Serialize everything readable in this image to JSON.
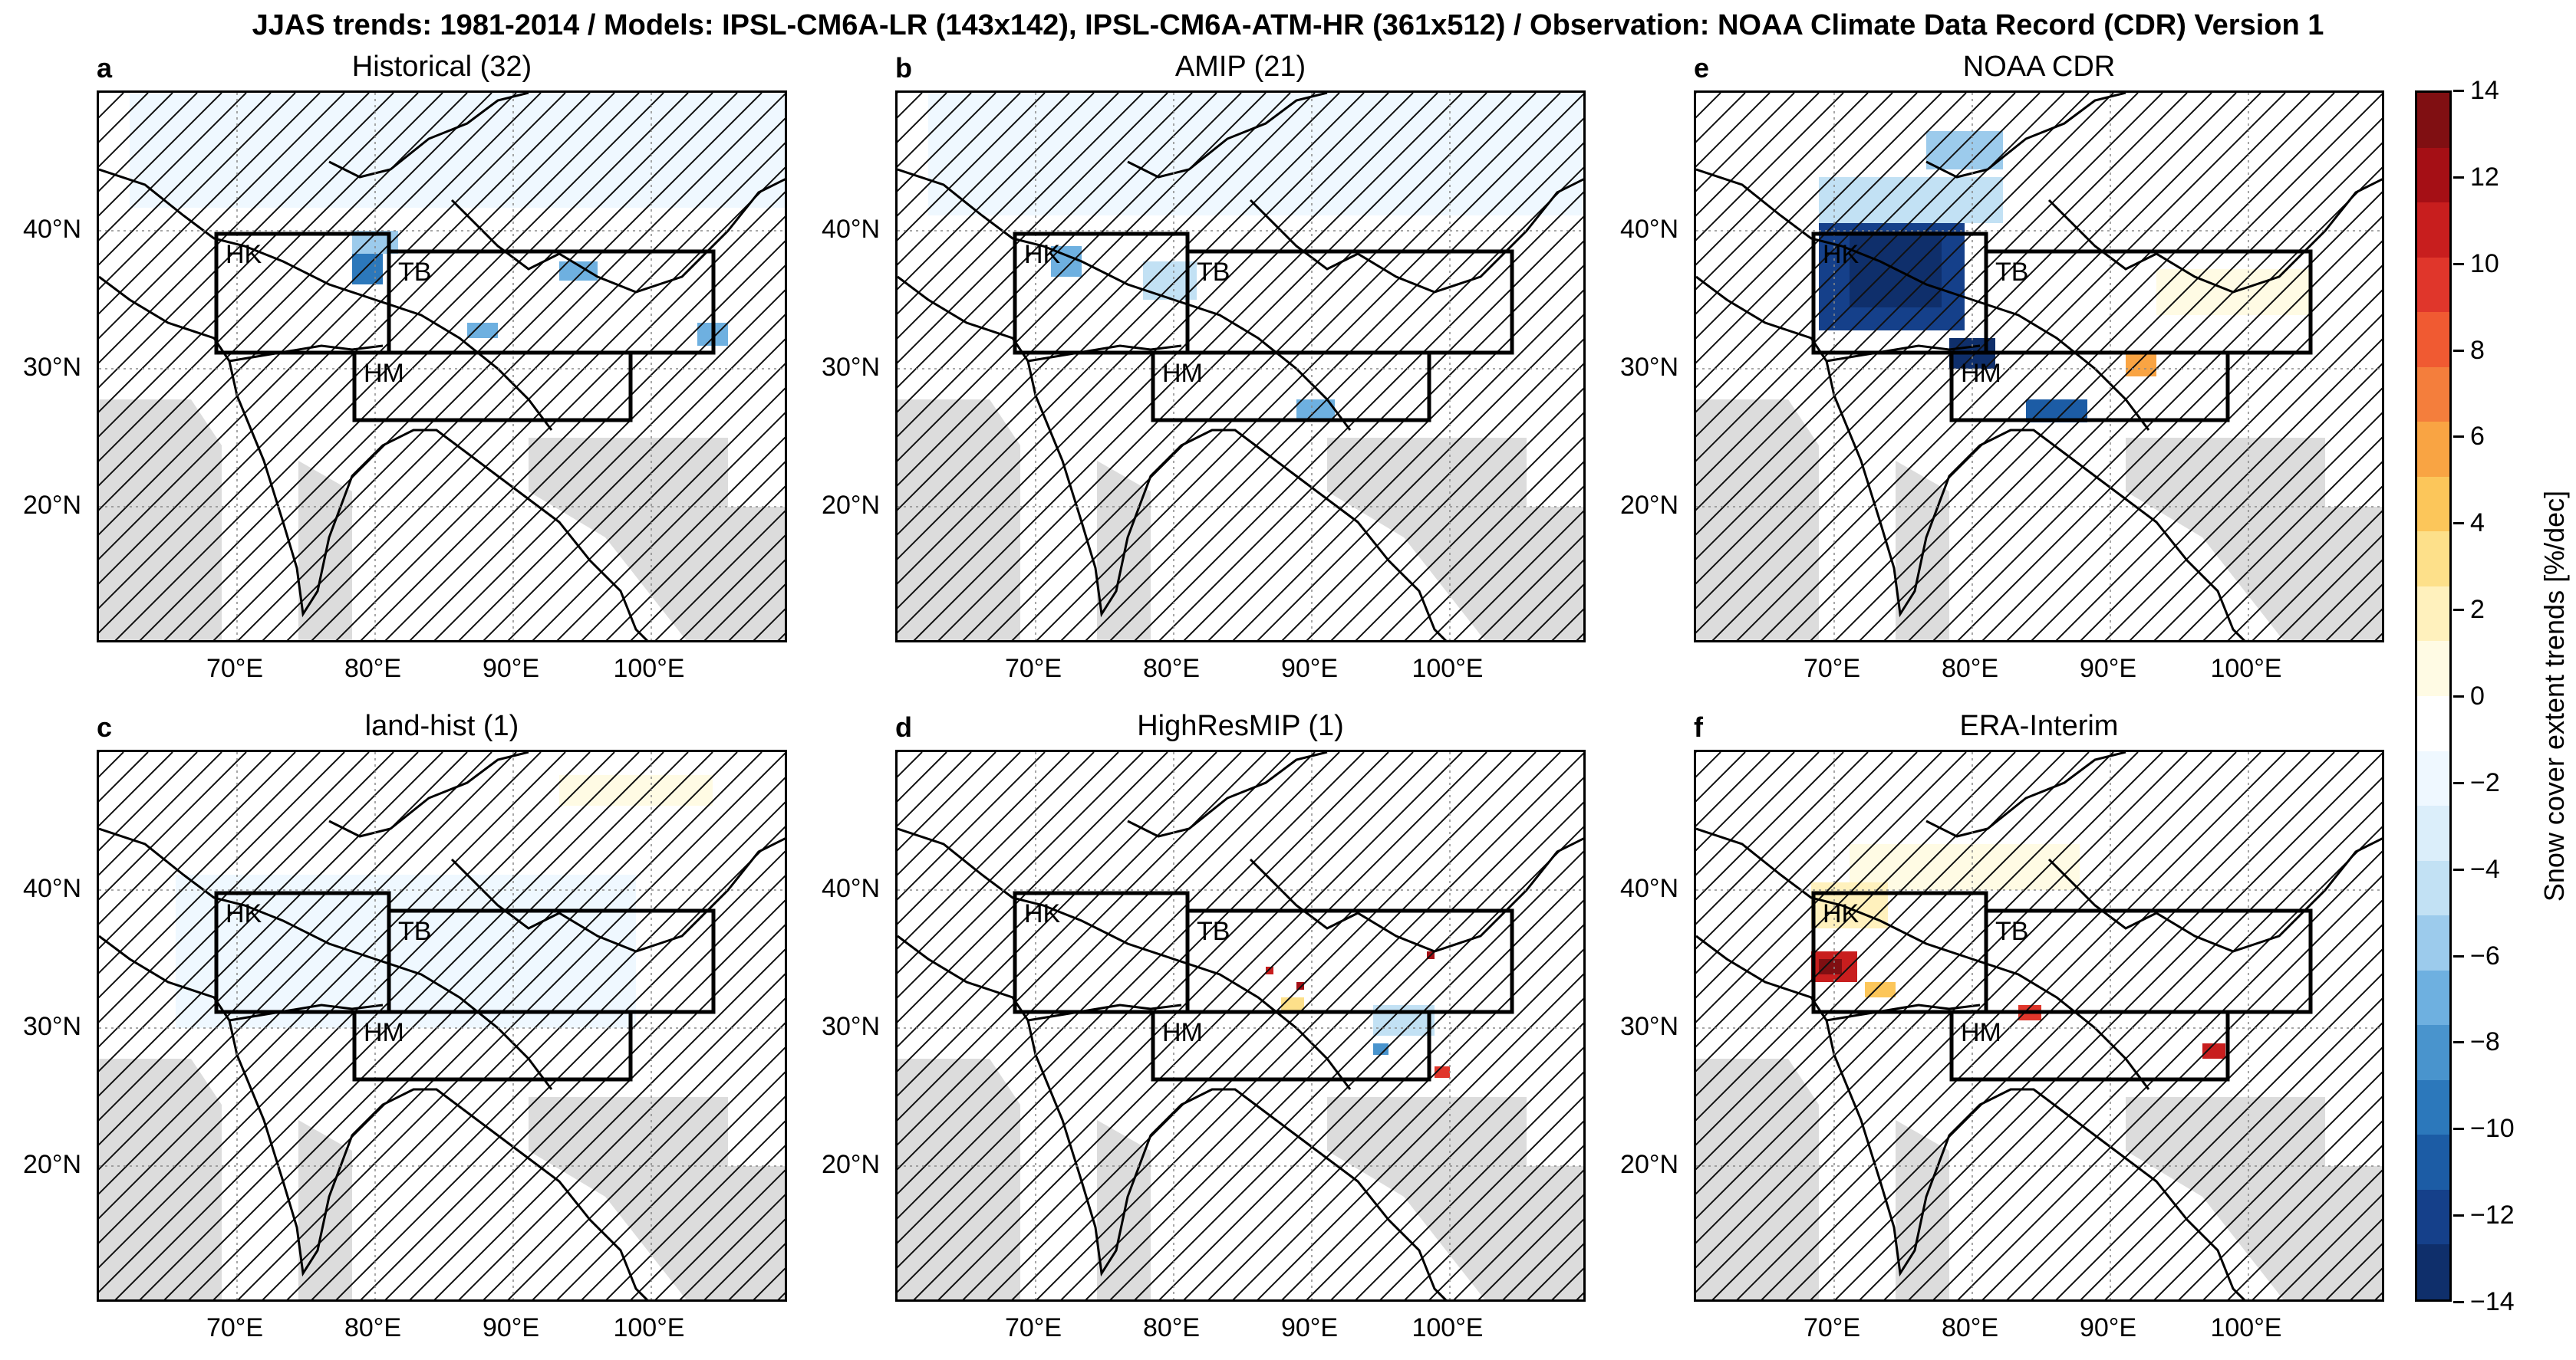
{
  "figure_title": "JJAS trends: 1981-2014 / Models: IPSL-CM6A-LR (143x142), IPSL-CM6A-ATM-HR (361x512) / Observation: NOAA Climate Data Record (CDR) Version 1",
  "axes": {
    "lat_ticks": [
      "40°N",
      "30°N",
      "20°N"
    ],
    "lon_ticks": [
      "70°E",
      "80°E",
      "90°E",
      "100°E"
    ]
  },
  "regions": [
    "HK",
    "TB",
    "HM"
  ],
  "panels": [
    {
      "letter": "a",
      "title": "Historical (32)"
    },
    {
      "letter": "b",
      "title": "AMIP (21)"
    },
    {
      "letter": "e",
      "title": "NOAA CDR"
    },
    {
      "letter": "c",
      "title": "land-hist (1)"
    },
    {
      "letter": "d",
      "title": "HighResMIP (1)"
    },
    {
      "letter": "f",
      "title": "ERA-Interim"
    }
  ],
  "colorbar": {
    "title": "Snow cover extent trends [%/dec]",
    "tick_labels": [
      "14",
      "12",
      "10",
      "8",
      "6",
      "4",
      "2",
      "0",
      "−2",
      "−4",
      "−6",
      "−8",
      "−10",
      "−12",
      "−14"
    ],
    "colors": [
      "#800f12",
      "#a50f15",
      "#c81e1e",
      "#e0362b",
      "#f05a32",
      "#f47e3c",
      "#f9a443",
      "#fcc65a",
      "#fde08a",
      "#fff1bd",
      "#fffbe4",
      "#ffffff",
      "#eff8ff",
      "#dbeefa",
      "#c2e1f4",
      "#9ccbec",
      "#6eb0e0",
      "#4994cd",
      "#2c78bb",
      "#1c5ca5",
      "#15408a",
      "#0f2f6b"
    ]
  }
}
